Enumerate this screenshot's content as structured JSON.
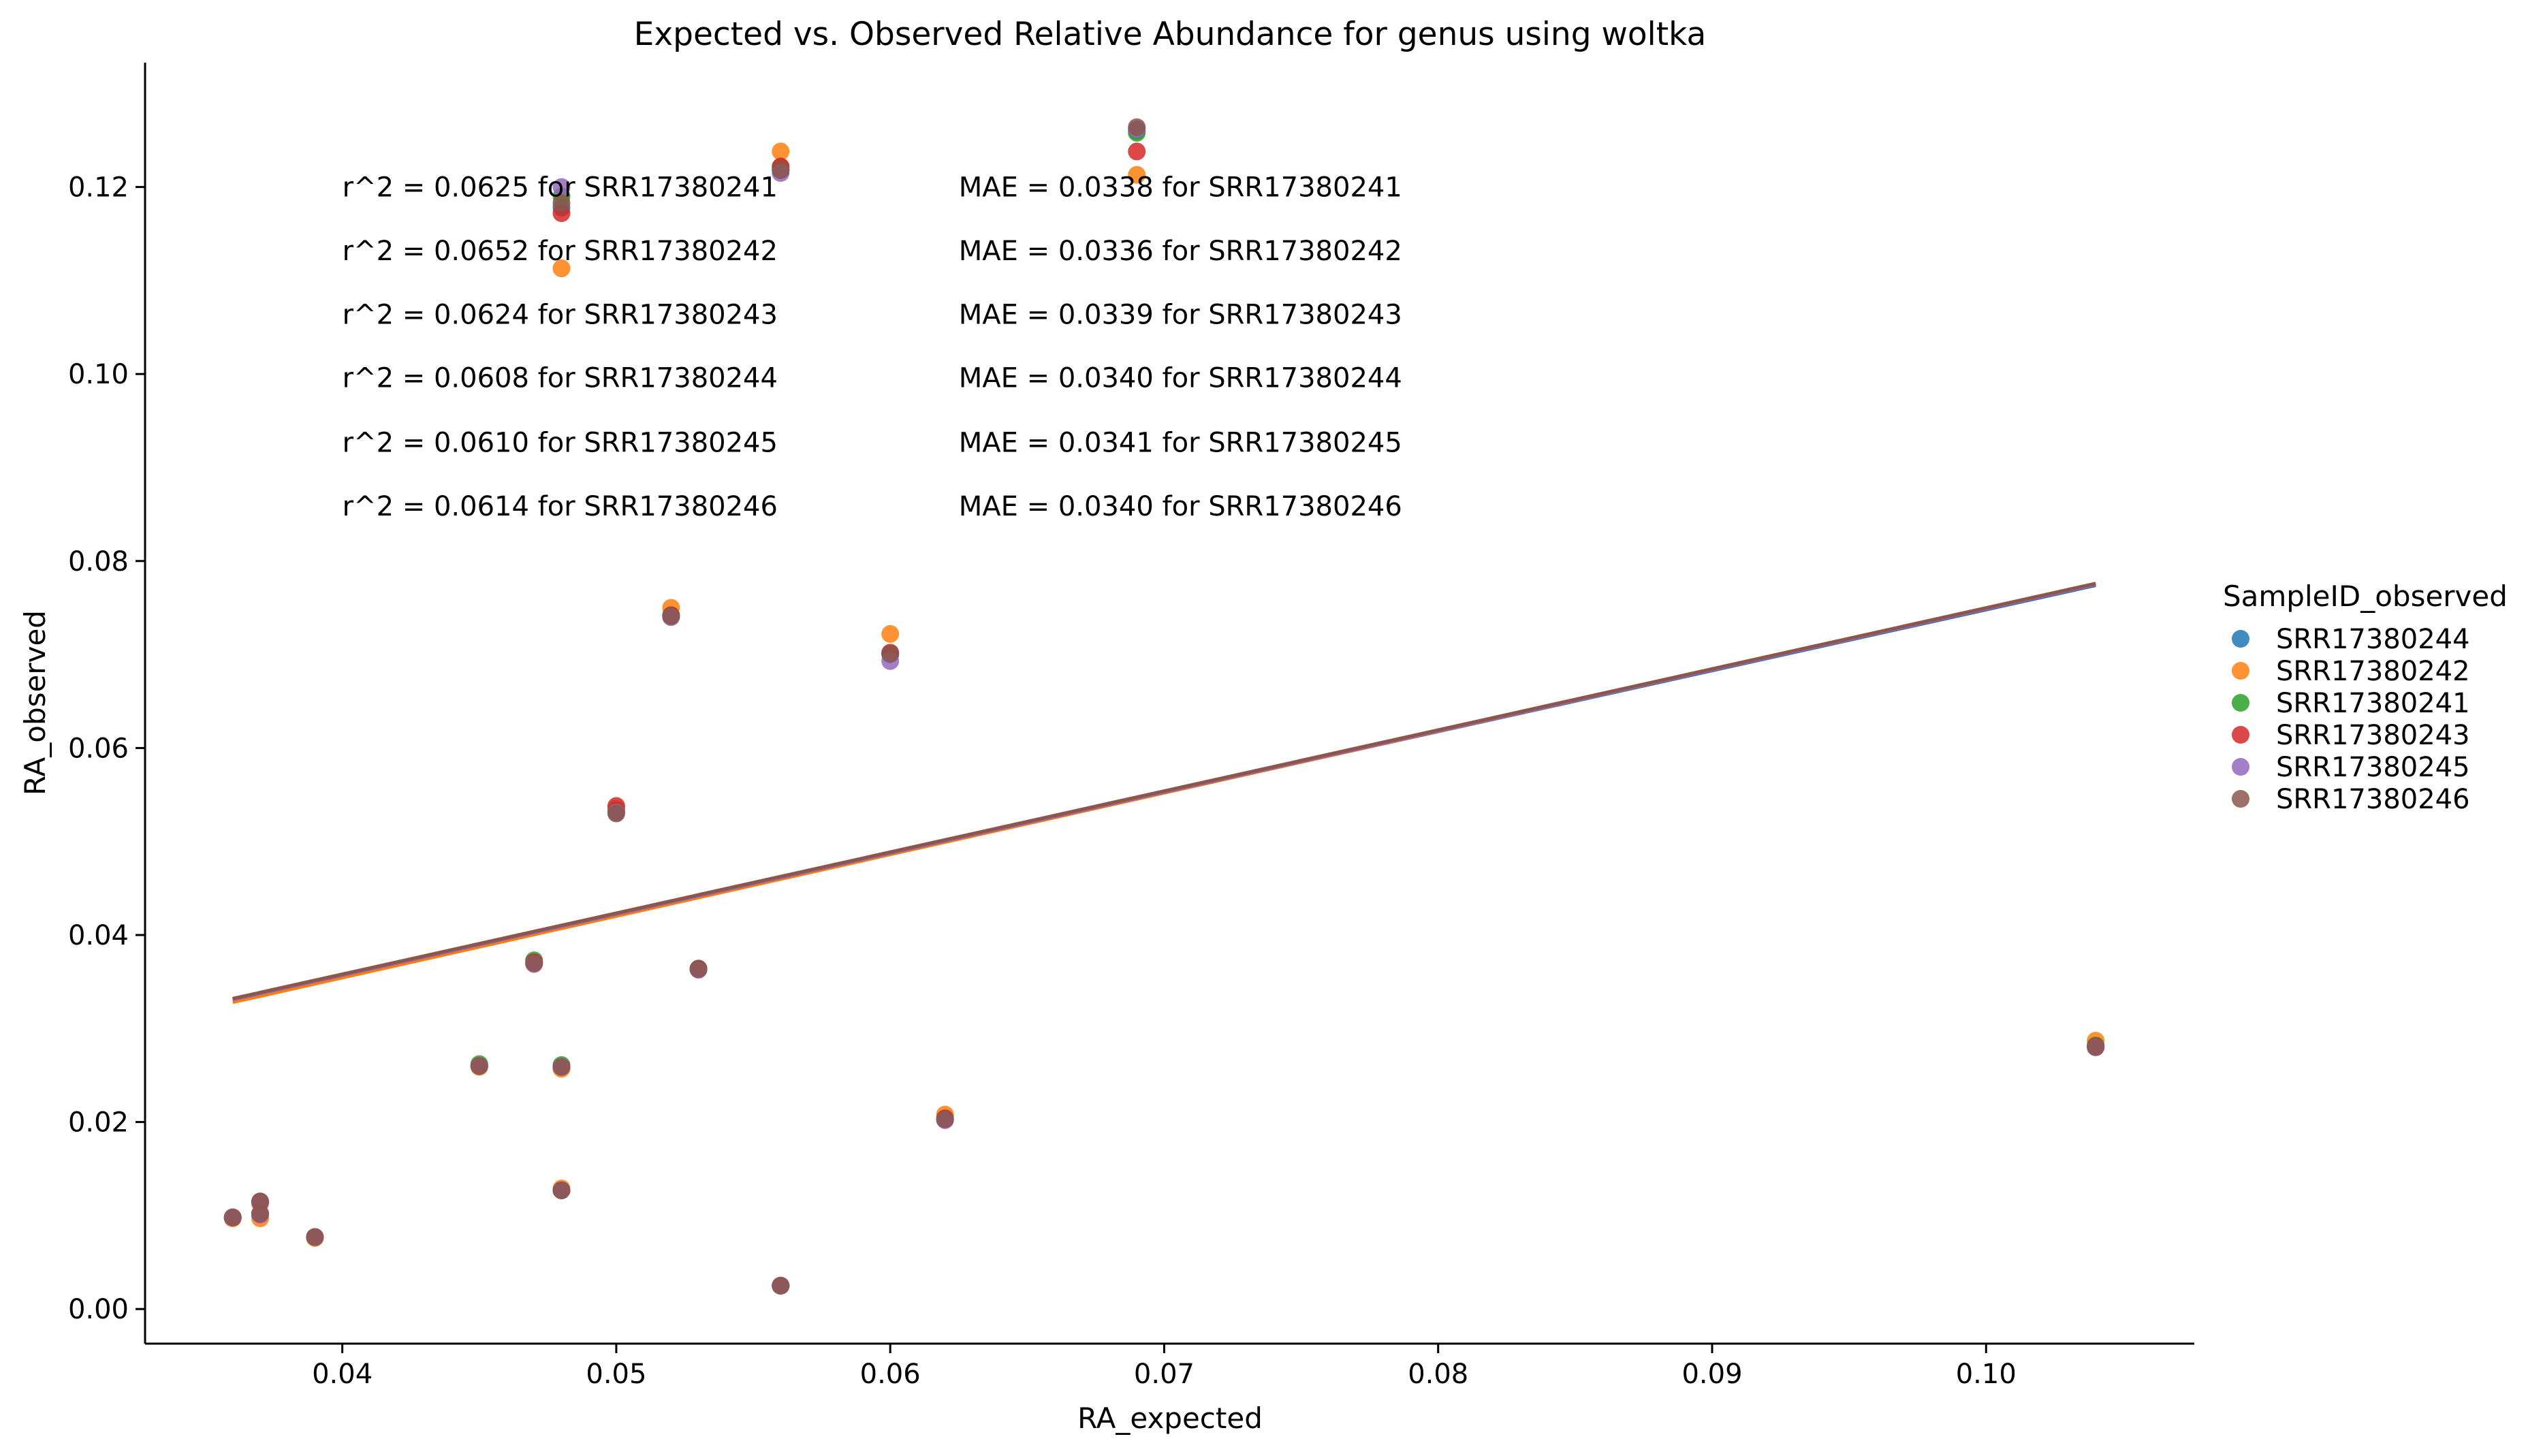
{
  "chart_data": {
    "type": "scatter",
    "title": "Expected vs. Observed Relative Abundance for genus using woltka",
    "xlabel": "RA_expected",
    "ylabel": "RA_observed",
    "xlim": [
      0.0328,
      0.1076
    ],
    "ylim": [
      -0.0037,
      0.1333
    ],
    "x_ticks": [
      0.04,
      0.05,
      0.06,
      0.07,
      0.08,
      0.09,
      0.1
    ],
    "x_tick_labels": [
      "0.04",
      "0.05",
      "0.06",
      "0.07",
      "0.08",
      "0.09",
      "0.10"
    ],
    "y_ticks": [
      0.0,
      0.02,
      0.04,
      0.06,
      0.08,
      0.1,
      0.12
    ],
    "y_tick_labels": [
      "0.00",
      "0.02",
      "0.04",
      "0.06",
      "0.08",
      "0.10",
      "0.12"
    ],
    "grid": false,
    "legend_position": "right",
    "legend": {
      "title": "SampleID_observed",
      "items": [
        {
          "label": "SRR17380244",
          "color": "#1f77b4"
        },
        {
          "label": "SRR17380242",
          "color": "#ff7f0e"
        },
        {
          "label": "SRR17380241",
          "color": "#2ca02c"
        },
        {
          "label": "SRR17380243",
          "color": "#d62728"
        },
        {
          "label": "SRR17380245",
          "color": "#9467bd"
        },
        {
          "label": "SRR17380246",
          "color": "#8c564b"
        }
      ]
    },
    "annotations_r2": [
      "r^2 = 0.0625 for SRR17380241",
      "r^2 = 0.0652 for SRR17380242",
      "r^2 = 0.0624 for SRR17380243",
      "r^2 = 0.0608 for SRR17380244",
      "r^2 = 0.0610 for SRR17380245",
      "r^2 = 0.0614 for SRR17380246"
    ],
    "annotations_mae": [
      "MAE = 0.0338 for SRR17380241",
      "MAE = 0.0336 for SRR17380242",
      "MAE = 0.0339 for SRR17380243",
      "MAE = 0.0340 for SRR17380244",
      "MAE = 0.0341 for SRR17380245",
      "MAE = 0.0340 for SRR17380246"
    ],
    "series": [
      {
        "name": "SRR17380244",
        "color": "#1f77b4",
        "points": [
          [
            0.036,
            0.0098
          ],
          [
            0.037,
            0.0101
          ],
          [
            0.037,
            0.0114
          ],
          [
            0.039,
            0.0077
          ],
          [
            0.045,
            0.026
          ],
          [
            0.047,
            0.037
          ],
          [
            0.048,
            0.0127
          ],
          [
            0.048,
            0.0259
          ],
          [
            0.048,
            0.1178
          ],
          [
            0.05,
            0.0532
          ],
          [
            0.052,
            0.0741
          ],
          [
            0.053,
            0.0363
          ],
          [
            0.056,
            0.0025
          ],
          [
            0.056,
            0.1218
          ],
          [
            0.06,
            0.07
          ],
          [
            0.062,
            0.0203
          ],
          [
            0.069,
            0.126
          ],
          [
            0.104,
            0.0281
          ]
        ],
        "fit": [
          [
            0.036,
            0.0331
          ],
          [
            0.104,
            0.0774
          ]
        ]
      },
      {
        "name": "SRR17380242",
        "color": "#ff7f0e",
        "points": [
          [
            0.036,
            0.0097
          ],
          [
            0.037,
            0.0097
          ],
          [
            0.037,
            0.0113
          ],
          [
            0.039,
            0.0076
          ],
          [
            0.045,
            0.0259
          ],
          [
            0.047,
            0.037
          ],
          [
            0.048,
            0.0129
          ],
          [
            0.048,
            0.0257
          ],
          [
            0.048,
            0.1113
          ],
          [
            0.05,
            0.0535
          ],
          [
            0.052,
            0.075
          ],
          [
            0.053,
            0.0364
          ],
          [
            0.056,
            0.0025
          ],
          [
            0.056,
            0.1238
          ],
          [
            0.06,
            0.0722
          ],
          [
            0.062,
            0.0208
          ],
          [
            0.069,
            0.1213
          ],
          [
            0.104,
            0.0287
          ]
        ],
        "fit": [
          [
            0.036,
            0.0328
          ],
          [
            0.104,
            0.0776
          ]
        ]
      },
      {
        "name": "SRR17380241",
        "color": "#2ca02c",
        "points": [
          [
            0.036,
            0.0098
          ],
          [
            0.037,
            0.0102
          ],
          [
            0.037,
            0.0114
          ],
          [
            0.039,
            0.0077
          ],
          [
            0.045,
            0.0262
          ],
          [
            0.047,
            0.0373
          ],
          [
            0.048,
            0.0127
          ],
          [
            0.048,
            0.0261
          ],
          [
            0.048,
            0.119
          ],
          [
            0.05,
            0.0533
          ],
          [
            0.052,
            0.0742
          ],
          [
            0.053,
            0.0364
          ],
          [
            0.056,
            0.0025
          ],
          [
            0.056,
            0.1221
          ],
          [
            0.06,
            0.0701
          ],
          [
            0.062,
            0.0203
          ],
          [
            0.069,
            0.1258
          ],
          [
            0.104,
            0.0282
          ]
        ],
        "fit": [
          [
            0.036,
            0.0331
          ],
          [
            0.104,
            0.0775
          ]
        ]
      },
      {
        "name": "SRR17380243",
        "color": "#d62728",
        "points": [
          [
            0.036,
            0.0098
          ],
          [
            0.037,
            0.0102
          ],
          [
            0.037,
            0.0115
          ],
          [
            0.039,
            0.0077
          ],
          [
            0.045,
            0.026
          ],
          [
            0.047,
            0.0371
          ],
          [
            0.048,
            0.0127
          ],
          [
            0.048,
            0.0259
          ],
          [
            0.048,
            0.1172
          ],
          [
            0.05,
            0.0538
          ],
          [
            0.052,
            0.0742
          ],
          [
            0.053,
            0.0364
          ],
          [
            0.056,
            0.0025
          ],
          [
            0.056,
            0.1222
          ],
          [
            0.06,
            0.0702
          ],
          [
            0.062,
            0.0204
          ],
          [
            0.069,
            0.1238
          ],
          [
            0.104,
            0.0281
          ]
        ],
        "fit": [
          [
            0.036,
            0.0331
          ],
          [
            0.104,
            0.0775
          ]
        ]
      },
      {
        "name": "SRR17380245",
        "color": "#9467bd",
        "points": [
          [
            0.036,
            0.0098
          ],
          [
            0.037,
            0.0101
          ],
          [
            0.037,
            0.0114
          ],
          [
            0.039,
            0.0077
          ],
          [
            0.045,
            0.026
          ],
          [
            0.047,
            0.0369
          ],
          [
            0.048,
            0.0127
          ],
          [
            0.048,
            0.0259
          ],
          [
            0.048,
            0.12
          ],
          [
            0.05,
            0.0531
          ],
          [
            0.052,
            0.074
          ],
          [
            0.053,
            0.0363
          ],
          [
            0.056,
            0.0025
          ],
          [
            0.056,
            0.1215
          ],
          [
            0.06,
            0.0693
          ],
          [
            0.062,
            0.0202
          ],
          [
            0.069,
            0.1262
          ],
          [
            0.104,
            0.028
          ]
        ],
        "fit": [
          [
            0.036,
            0.0331
          ],
          [
            0.104,
            0.0775
          ]
        ]
      },
      {
        "name": "SRR17380246",
        "color": "#8c564b",
        "points": [
          [
            0.036,
            0.0098
          ],
          [
            0.037,
            0.0102
          ],
          [
            0.037,
            0.0115
          ],
          [
            0.039,
            0.0077
          ],
          [
            0.045,
            0.026
          ],
          [
            0.047,
            0.037
          ],
          [
            0.048,
            0.0127
          ],
          [
            0.048,
            0.0259
          ],
          [
            0.048,
            0.1183
          ],
          [
            0.05,
            0.053
          ],
          [
            0.052,
            0.0741
          ],
          [
            0.053,
            0.0364
          ],
          [
            0.056,
            0.0025
          ],
          [
            0.056,
            0.1218
          ],
          [
            0.06,
            0.0701
          ],
          [
            0.062,
            0.0203
          ],
          [
            0.069,
            0.1264
          ],
          [
            0.104,
            0.028
          ]
        ],
        "fit": [
          [
            0.036,
            0.0332
          ],
          [
            0.104,
            0.0776
          ]
        ]
      }
    ]
  }
}
